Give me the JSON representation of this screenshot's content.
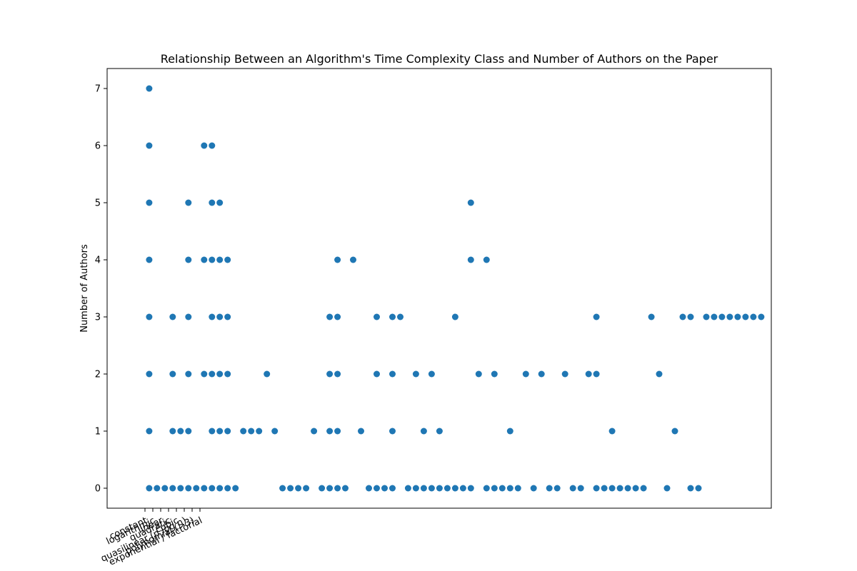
{
  "chart_data": {
    "type": "scatter",
    "title": "Relationship Between an Algorithm's Time Complexity Class and Number of Authors on the Paper",
    "xlabel": "",
    "ylabel": "Number of Authors",
    "x_tick_labels": [
      "constant",
      "logarithmic",
      "linear",
      "quadratic",
      "cubic",
      "quasilinear (n log n)",
      "polynomial (>3)",
      "exponential / factorial"
    ],
    "y_ticks": [
      0,
      1,
      2,
      3,
      4,
      5,
      6,
      7
    ],
    "xlim": [
      -0.75,
      11.1
    ],
    "ylim": [
      -0.35,
      7.35
    ],
    "grid": false,
    "marker_color": "#1f77b4",
    "points": [
      [
        0,
        0
      ],
      [
        0,
        1
      ],
      [
        0,
        2
      ],
      [
        0,
        3
      ],
      [
        0,
        4
      ],
      [
        0,
        5
      ],
      [
        0,
        6
      ],
      [
        0,
        7
      ],
      [
        0.14,
        0
      ],
      [
        0.28,
        0
      ],
      [
        0.42,
        0
      ],
      [
        0.42,
        1
      ],
      [
        0.42,
        2
      ],
      [
        0.42,
        3
      ],
      [
        0.56,
        0
      ],
      [
        0.56,
        1
      ],
      [
        0.7,
        0
      ],
      [
        0.7,
        1
      ],
      [
        0.7,
        2
      ],
      [
        0.7,
        3
      ],
      [
        0.7,
        4
      ],
      [
        0.7,
        5
      ],
      [
        0.84,
        0
      ],
      [
        0.98,
        0
      ],
      [
        0.98,
        2
      ],
      [
        0.98,
        4
      ],
      [
        0.98,
        6
      ],
      [
        1.12,
        0
      ],
      [
        1.12,
        1
      ],
      [
        1.12,
        2
      ],
      [
        1.12,
        3
      ],
      [
        1.12,
        4
      ],
      [
        1.12,
        5
      ],
      [
        1.12,
        6
      ],
      [
        1.26,
        0
      ],
      [
        1.26,
        1
      ],
      [
        1.26,
        2
      ],
      [
        1.26,
        3
      ],
      [
        1.26,
        4
      ],
      [
        1.26,
        5
      ],
      [
        1.4,
        0
      ],
      [
        1.4,
        1
      ],
      [
        1.4,
        2
      ],
      [
        1.4,
        3
      ],
      [
        1.4,
        4
      ],
      [
        1.54,
        0
      ],
      [
        1.68,
        1
      ],
      [
        1.82,
        1
      ],
      [
        1.96,
        1
      ],
      [
        2.1,
        2
      ],
      [
        2.24,
        1
      ],
      [
        2.38,
        0
      ],
      [
        2.52,
        0
      ],
      [
        2.66,
        0
      ],
      [
        2.8,
        0
      ],
      [
        2.94,
        1
      ],
      [
        3.08,
        0
      ],
      [
        3.22,
        0
      ],
      [
        3.22,
        1
      ],
      [
        3.22,
        2
      ],
      [
        3.22,
        3
      ],
      [
        3.36,
        0
      ],
      [
        3.36,
        1
      ],
      [
        3.36,
        2
      ],
      [
        3.36,
        3
      ],
      [
        3.36,
        4
      ],
      [
        3.5,
        0
      ],
      [
        3.64,
        4
      ],
      [
        3.78,
        1
      ],
      [
        3.92,
        0
      ],
      [
        4.06,
        0
      ],
      [
        4.06,
        2
      ],
      [
        4.06,
        3
      ],
      [
        4.2,
        0
      ],
      [
        4.34,
        0
      ],
      [
        4.34,
        1
      ],
      [
        4.34,
        2
      ],
      [
        4.34,
        3
      ],
      [
        4.48,
        3
      ],
      [
        4.62,
        0
      ],
      [
        4.76,
        0
      ],
      [
        4.76,
        2
      ],
      [
        4.9,
        0
      ],
      [
        4.9,
        1
      ],
      [
        5.04,
        0
      ],
      [
        5.04,
        2
      ],
      [
        5.18,
        0
      ],
      [
        5.18,
        1
      ],
      [
        5.32,
        0
      ],
      [
        5.46,
        0
      ],
      [
        5.46,
        3
      ],
      [
        5.6,
        0
      ],
      [
        5.74,
        0
      ],
      [
        5.74,
        4
      ],
      [
        5.74,
        5
      ],
      [
        5.88,
        2
      ],
      [
        6.02,
        0
      ],
      [
        6.02,
        4
      ],
      [
        6.16,
        0
      ],
      [
        6.16,
        2
      ],
      [
        6.3,
        0
      ],
      [
        6.44,
        0
      ],
      [
        6.44,
        1
      ],
      [
        6.58,
        0
      ],
      [
        6.72,
        2
      ],
      [
        6.86,
        0
      ],
      [
        7.0,
        2
      ],
      [
        7.14,
        0
      ],
      [
        7.28,
        0
      ],
      [
        7.42,
        2
      ],
      [
        7.56,
        0
      ],
      [
        7.7,
        0
      ],
      [
        7.84,
        2
      ],
      [
        7.98,
        0
      ],
      [
        7.98,
        2
      ],
      [
        7.98,
        3
      ],
      [
        8.12,
        0
      ],
      [
        8.26,
        0
      ],
      [
        8.26,
        1
      ],
      [
        8.4,
        0
      ],
      [
        8.54,
        0
      ],
      [
        8.68,
        0
      ],
      [
        8.82,
        0
      ],
      [
        8.96,
        3
      ],
      [
        9.1,
        2
      ],
      [
        9.24,
        0
      ],
      [
        9.38,
        1
      ],
      [
        9.52,
        3
      ],
      [
        9.66,
        0
      ],
      [
        9.66,
        3
      ],
      [
        9.8,
        0
      ],
      [
        9.94,
        3
      ],
      [
        10.08,
        3
      ],
      [
        10.22,
        3
      ],
      [
        10.36,
        3
      ],
      [
        10.5,
        3
      ],
      [
        10.64,
        3
      ],
      [
        10.78,
        3
      ],
      [
        10.92,
        3
      ]
    ]
  }
}
